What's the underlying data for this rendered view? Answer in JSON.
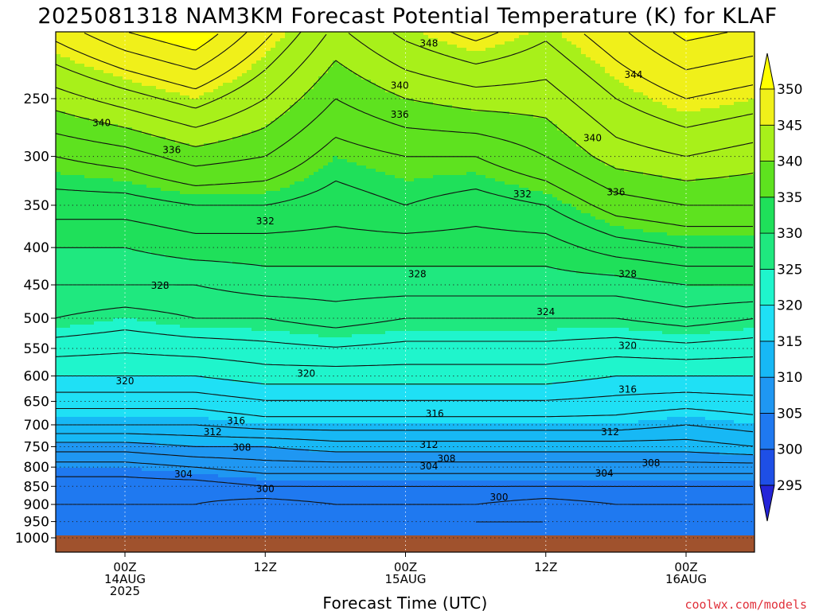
{
  "chart_data": {
    "type": "heatmap",
    "title": "2025081318 NAM3KM Forecast Potential Temperature (K) for KLAF",
    "xlabel": "Forecast Time (UTC)",
    "ylabel": "",
    "y_axis": {
      "scale": "log-pressure",
      "direction": "inverted",
      "ticks": [
        250,
        300,
        350,
        400,
        450,
        500,
        550,
        600,
        650,
        700,
        750,
        800,
        850,
        900,
        950,
        1000
      ],
      "range": [
        1000,
        200
      ]
    },
    "x_axis": {
      "range_hours": [
        -6,
        54
      ],
      "ticks": [
        {
          "hour": 0,
          "lines": [
            "00Z",
            "14AUG",
            "2025"
          ]
        },
        {
          "hour": 12,
          "lines": [
            "12Z"
          ]
        },
        {
          "hour": 24,
          "lines": [
            "00Z",
            "15AUG"
          ]
        },
        {
          "hour": 36,
          "lines": [
            "12Z"
          ]
        },
        {
          "hour": 48,
          "lines": [
            "00Z",
            "16AUG"
          ]
        }
      ]
    },
    "grid": true,
    "colorbar": {
      "position": "right",
      "levels": [
        295,
        300,
        305,
        310,
        315,
        320,
        325,
        330,
        335,
        340,
        345,
        350
      ],
      "labels": [
        "295",
        "300",
        "305",
        "310",
        "315",
        "320",
        "325",
        "330",
        "335",
        "340",
        "345",
        "350"
      ],
      "colors": [
        "#2424d8",
        "#1e4fe6",
        "#1f79f0",
        "#1f97f2",
        "#17b8f5",
        "#1fe0f5",
        "#1ff5cc",
        "#1fe87f",
        "#1fe05a",
        "#5ee21f",
        "#a8f01a",
        "#f0f01a",
        "#ffff00"
      ],
      "extend": "both"
    },
    "data_columns": [
      {
        "hour": -6,
        "pressure": [
          250,
          300,
          350,
          400,
          450,
          500,
          600,
          700,
          750,
          800,
          850,
          900,
          950,
          1000
        ],
        "theta": [
          341,
          336,
          333,
          330,
          328,
          326,
          320,
          314,
          309,
          305,
          303,
          302,
          301,
          302
        ]
      },
      {
        "hour": 0,
        "pressure": [
          250,
          300,
          350,
          400,
          450,
          500,
          600,
          700,
          750,
          800,
          850,
          900,
          950,
          1000
        ],
        "theta": [
          343,
          337,
          333,
          330,
          328,
          325,
          320,
          314,
          309,
          305,
          303,
          302,
          301,
          302
        ]
      },
      {
        "hour": 6,
        "pressure": [
          250,
          300,
          350,
          400,
          450,
          500,
          600,
          700,
          750,
          800,
          850,
          900,
          950,
          1000
        ],
        "theta": [
          345,
          339,
          334,
          331,
          328,
          326,
          320,
          314,
          310,
          306,
          303,
          302,
          301,
          301
        ]
      },
      {
        "hour": 12,
        "pressure": [
          250,
          300,
          350,
          400,
          450,
          500,
          600,
          700,
          750,
          800,
          850,
          900,
          950,
          1000
        ],
        "theta": [
          342,
          338,
          334,
          331,
          329,
          326,
          321,
          315,
          310,
          307,
          304,
          301,
          300,
          300
        ]
      },
      {
        "hour": 18,
        "pressure": [
          250,
          300,
          350,
          400,
          450,
          500,
          600,
          700,
          750,
          800,
          850,
          900,
          950,
          1000
        ],
        "theta": [
          338,
          335,
          333,
          331,
          329,
          327,
          321,
          315,
          311,
          307,
          304,
          302,
          301,
          302
        ]
      },
      {
        "hour": 24,
        "pressure": [
          250,
          300,
          350,
          400,
          450,
          500,
          600,
          700,
          750,
          800,
          850,
          900,
          950,
          1000
        ],
        "theta": [
          340,
          336,
          334,
          331,
          329,
          326,
          321,
          315,
          311,
          307,
          304,
          302,
          301,
          301
        ]
      },
      {
        "hour": 30,
        "pressure": [
          250,
          300,
          350,
          400,
          450,
          500,
          600,
          700,
          750,
          800,
          850,
          900,
          950,
          1000
        ],
        "theta": [
          341,
          336,
          333,
          331,
          329,
          326,
          321,
          315,
          311,
          307,
          304,
          302,
          300,
          300
        ]
      },
      {
        "hour": 36,
        "pressure": [
          250,
          300,
          350,
          400,
          450,
          500,
          600,
          700,
          750,
          800,
          850,
          900,
          950,
          1000
        ],
        "theta": [
          341,
          338,
          334,
          331,
          329,
          326,
          321,
          315,
          311,
          307,
          304,
          301,
          300,
          300
        ]
      },
      {
        "hour": 42,
        "pressure": [
          250,
          300,
          350,
          400,
          450,
          500,
          600,
          700,
          750,
          800,
          850,
          900,
          950,
          1000
        ],
        "theta": [
          344,
          341,
          337,
          333,
          329,
          326,
          320,
          315,
          311,
          307,
          304,
          302,
          300,
          301
        ]
      },
      {
        "hour": 48,
        "pressure": [
          250,
          300,
          350,
          400,
          450,
          500,
          600,
          700,
          750,
          800,
          850,
          900,
          950,
          1000
        ],
        "theta": [
          346,
          342,
          338,
          334,
          330,
          327,
          320,
          314,
          311,
          307,
          304,
          302,
          301,
          302
        ]
      },
      {
        "hour": 54,
        "pressure": [
          250,
          300,
          350,
          400,
          450,
          500,
          600,
          700,
          750,
          800,
          850,
          900,
          950,
          1000
        ],
        "theta": [
          345,
          341,
          338,
          334,
          330,
          326,
          320,
          315,
          312,
          307,
          304,
          302,
          300,
          300
        ]
      }
    ],
    "contour_labels": [
      {
        "value": "348",
        "hour": 26.0,
        "pressure": 210
      },
      {
        "value": "344",
        "hour": 43.5,
        "pressure": 232
      },
      {
        "value": "340",
        "hour": -2.0,
        "pressure": 270
      },
      {
        "value": "340",
        "hour": 23.5,
        "pressure": 240
      },
      {
        "value": "340",
        "hour": 40.0,
        "pressure": 283
      },
      {
        "value": "336",
        "hour": 4.0,
        "pressure": 294
      },
      {
        "value": "336",
        "hour": 23.5,
        "pressure": 263
      },
      {
        "value": "336",
        "hour": 42.0,
        "pressure": 336
      },
      {
        "value": "332",
        "hour": 12.0,
        "pressure": 368
      },
      {
        "value": "332",
        "hour": 34.0,
        "pressure": 338
      },
      {
        "value": "328",
        "hour": 3.0,
        "pressure": 451
      },
      {
        "value": "328",
        "hour": 25.0,
        "pressure": 435
      },
      {
        "value": "328",
        "hour": 43.0,
        "pressure": 435
      },
      {
        "value": "324",
        "hour": 36.0,
        "pressure": 490
      },
      {
        "value": "320",
        "hour": 0.0,
        "pressure": 610
      },
      {
        "value": "320",
        "hour": 15.5,
        "pressure": 595
      },
      {
        "value": "320",
        "hour": 43.0,
        "pressure": 545
      },
      {
        "value": "316",
        "hour": 9.5,
        "pressure": 691
      },
      {
        "value": "316",
        "hour": 26.5,
        "pressure": 676
      },
      {
        "value": "316",
        "hour": 43.0,
        "pressure": 626
      },
      {
        "value": "312",
        "hour": 7.5,
        "pressure": 716
      },
      {
        "value": "312",
        "hour": 26.0,
        "pressure": 745
      },
      {
        "value": "312",
        "hour": 41.5,
        "pressure": 716
      },
      {
        "value": "308",
        "hour": 10.0,
        "pressure": 752
      },
      {
        "value": "308",
        "hour": 27.5,
        "pressure": 779
      },
      {
        "value": "308",
        "hour": 45.0,
        "pressure": 790
      },
      {
        "value": "304",
        "hour": 5.0,
        "pressure": 818
      },
      {
        "value": "304",
        "hour": 26.0,
        "pressure": 798
      },
      {
        "value": "304",
        "hour": 41.0,
        "pressure": 816
      },
      {
        "value": "300",
        "hour": 12.0,
        "pressure": 857
      },
      {
        "value": "300",
        "hour": 32.0,
        "pressure": 880
      }
    ]
  },
  "credit": "coolwx.com/models"
}
